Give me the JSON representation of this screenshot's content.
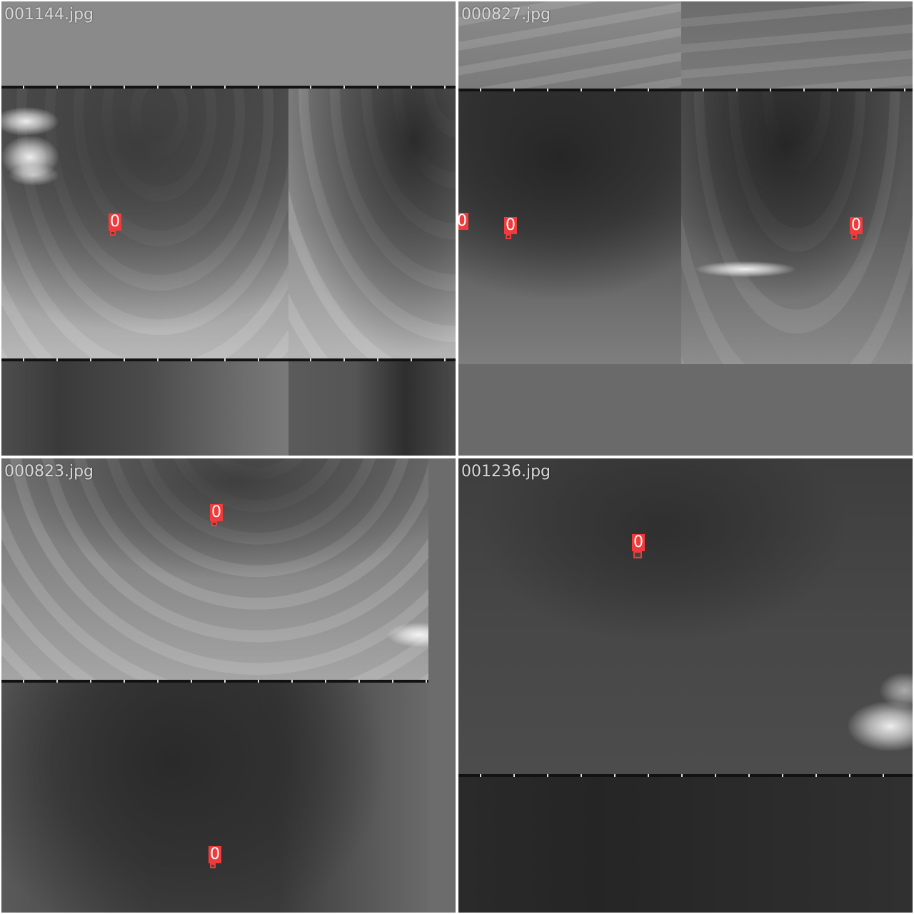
{
  "mosaic": {
    "images": [
      {
        "filename": "001144.jpg",
        "detections": [
          {
            "label": "0"
          }
        ]
      },
      {
        "filename": "000827.jpg",
        "detections": [
          {
            "label": "0"
          },
          {
            "label": "0"
          },
          {
            "label": "0"
          }
        ]
      },
      {
        "filename": "000823.jpg",
        "detections": [
          {
            "label": "0"
          },
          {
            "label": "0"
          }
        ]
      },
      {
        "filename": "001236.jpg",
        "detections": [
          {
            "label": "0"
          }
        ]
      }
    ],
    "colors": {
      "box": "#ef3b3b",
      "label_text": "#ffffff",
      "filename_text": "#d8d8d8",
      "separator": "#ffffff"
    }
  }
}
